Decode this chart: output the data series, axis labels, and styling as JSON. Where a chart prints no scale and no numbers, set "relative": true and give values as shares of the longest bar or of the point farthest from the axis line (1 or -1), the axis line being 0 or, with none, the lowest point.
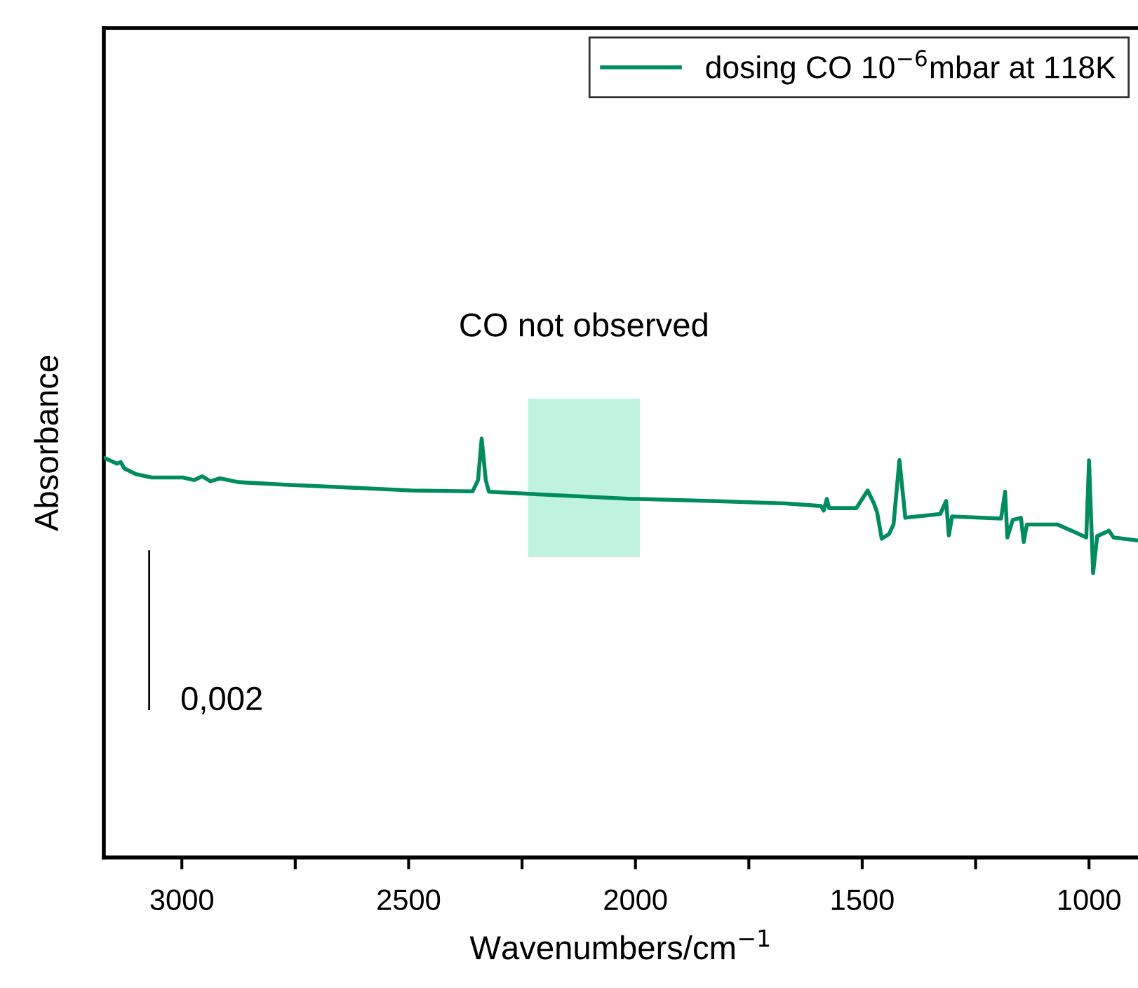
{
  "chart_data": {
    "type": "line",
    "relative": true,
    "xlabel": "Wavenumbers/cm$^{−1}$",
    "ylabel": "Absorbance",
    "xlim": [
      3172,
      892
    ],
    "xticks": [
      3000,
      {
        "value": 2750,
        "label": null
      },
      2500,
      {
        "value": 2250,
        "label": null
      },
      2000,
      {
        "value": 1750,
        "label": null
      },
      1500,
      {
        "value": 1250,
        "label": null
      },
      1000
    ],
    "tick_labels": "x",
    "legend": "top right",
    "grid": false,
    "marker": "none",
    "line_style": "solid",
    "bands": [
      {
        "axis": "x",
        "from": 2237,
        "to": 1990,
        "label": "CO not observed",
        "color": "#c0f2e0"
      }
    ],
    "annotations": [
      {
        "text": "0,002",
        "x": 3072,
        "y": 0.54
      }
    ],
    "series": [
      {
        "name": "dosing CO 10$^{−6}$mbar at 118K",
        "color": "#008c5f",
        "x": [
          3169,
          3143,
          3135,
          3127,
          3101,
          3066,
          2998,
          2973,
          2955,
          2937,
          2916,
          2875,
          2772,
          2668,
          2493,
          2359,
          2347,
          2339,
          2330,
          2323,
          2235,
          2008,
          1993,
          1833,
          1668,
          1591,
          1585,
          1578,
          1573,
          1513,
          1488,
          1474,
          1467,
          1457,
          1441,
          1431,
          1418,
          1405,
          1328,
          1315,
          1309,
          1302,
          1194,
          1185,
          1180,
          1168,
          1150,
          1144,
          1137,
          1070,
          1034,
          1006,
          1000,
          991,
          982,
          956,
          946,
          894
        ],
        "values": [
          0.953,
          0.94,
          0.944,
          0.929,
          0.915,
          0.907,
          0.907,
          0.901,
          0.91,
          0.898,
          0.905,
          0.896,
          0.89,
          0.885,
          0.876,
          0.874,
          0.901,
          1.0,
          0.901,
          0.873,
          0.868,
          0.856,
          0.856,
          0.851,
          0.845,
          0.839,
          0.828,
          0.856,
          0.834,
          0.834,
          0.876,
          0.845,
          0.823,
          0.761,
          0.772,
          0.795,
          0.949,
          0.811,
          0.82,
          0.851,
          0.769,
          0.814,
          0.809,
          0.873,
          0.764,
          0.806,
          0.811,
          0.753,
          0.795,
          0.795,
          0.778,
          0.764,
          0.948,
          0.679,
          0.767,
          0.78,
          0.764,
          0.757
        ]
      },
      {
        "type": "line",
        "color": "#000000",
        "x": [
          3072,
          3072
        ],
        "values": [
          0.354,
          0.731
        ]
      }
    ]
  }
}
